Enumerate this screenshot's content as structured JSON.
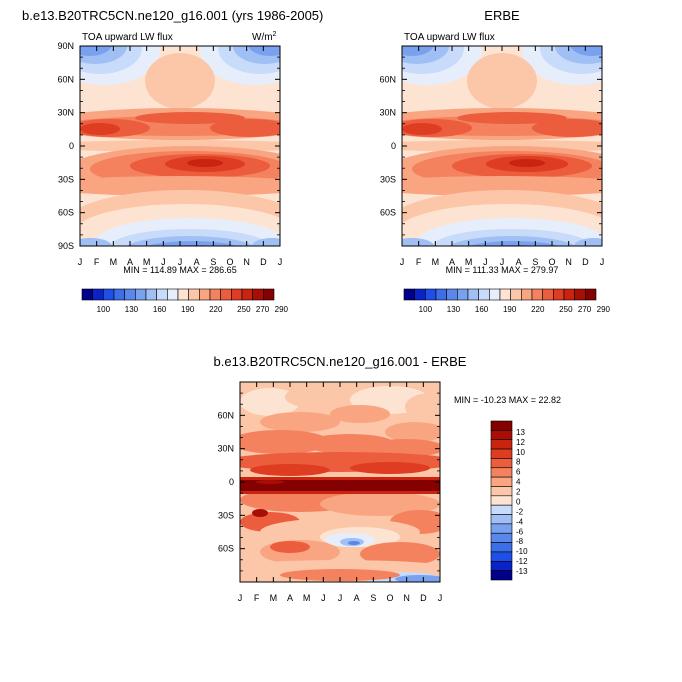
{
  "palette": [
    "#00008b",
    "#0a23c8",
    "#1f4fe6",
    "#3c6ee8",
    "#5a87ea",
    "#7aa1ee",
    "#a0bff4",
    "#c8dbfa",
    "#e6eefc",
    "#fde4d2",
    "#fcc7a8",
    "#f9a582",
    "#f4825e",
    "#ec5d3e",
    "#de3d22",
    "#c9240f",
    "#a80e05",
    "#850000"
  ],
  "panels": [
    {
      "id": "model",
      "title": "b.e13.B20TRC5CN.ne120_g16.001 (yrs 1986-2005)",
      "subtitle_left": "TOA upward LW flux",
      "units_base": "W/m",
      "units_exp": "2",
      "stats": "MIN = 114.89 MAX = 286.65",
      "y_tick_labels": [
        "90N",
        "60N",
        "30N",
        "0",
        "30S",
        "60S",
        "90S"
      ],
      "y_tick_values": [
        90,
        60,
        30,
        0,
        -30,
        -60,
        -90
      ],
      "x_tick_labels": [
        "J",
        "F",
        "M",
        "A",
        "M",
        "J",
        "J",
        "A",
        "S",
        "O",
        "N",
        "D",
        "J"
      ],
      "colorbar_labels": [
        "100",
        "130",
        "160",
        "190",
        "220",
        "250",
        "270",
        "290"
      ]
    },
    {
      "id": "obs",
      "title": "ERBE",
      "subtitle_left": "TOA upward LW flux",
      "stats": "MIN = 111.33 MAX = 279.97",
      "y_tick_labels": [
        "60N",
        "30N",
        "0",
        "30S",
        "60S"
      ],
      "y_tick_values": [
        60,
        30,
        0,
        -30,
        -60
      ],
      "x_tick_labels": [
        "J",
        "F",
        "M",
        "A",
        "M",
        "J",
        "J",
        "A",
        "S",
        "O",
        "N",
        "D",
        "J"
      ],
      "colorbar_labels": [
        "100",
        "130",
        "160",
        "190",
        "220",
        "250",
        "270",
        "290"
      ]
    },
    {
      "id": "diff",
      "title": "b.e13.B20TRC5CN.ne120_g16.001 - ERBE",
      "stats": "MIN = -10.23 MAX =  22.82",
      "y_tick_labels": [
        "60N",
        "30N",
        "0",
        "30S",
        "60S"
      ],
      "y_tick_values": [
        60,
        30,
        0,
        -30,
        -60
      ],
      "x_tick_labels": [
        "J",
        "F",
        "M",
        "A",
        "M",
        "J",
        "J",
        "A",
        "S",
        "O",
        "N",
        "D",
        "J"
      ],
      "colorbar_labels": [
        "13",
        "12",
        "10",
        "8",
        "6",
        "4",
        "2",
        "0",
        "-2",
        "-4",
        "-6",
        "-8",
        "-10",
        "-12",
        "-13"
      ]
    }
  ],
  "chart_data": [
    {
      "type": "heatmap",
      "title": "b.e13.B20TRC5CN.ne120_g16.001 (yrs 1986-2005)",
      "subtitle": "TOA upward LW flux",
      "units": "W/m^2",
      "x": [
        "J",
        "F",
        "M",
        "A",
        "M",
        "J",
        "J",
        "A",
        "S",
        "O",
        "N",
        "D",
        "J"
      ],
      "y": [
        90,
        60,
        30,
        0,
        -30,
        -60,
        -90
      ],
      "ylim": [
        -90,
        90
      ],
      "levels": [
        100,
        110,
        120,
        130,
        140,
        150,
        160,
        170,
        180,
        190,
        200,
        220,
        230,
        240,
        250,
        260,
        270,
        280,
        290
      ],
      "min": 114.89,
      "max": 286.65
    },
    {
      "type": "heatmap",
      "title": "ERBE",
      "subtitle": "TOA upward LW flux",
      "units": "W/m^2",
      "x": [
        "J",
        "F",
        "M",
        "A",
        "M",
        "J",
        "J",
        "A",
        "S",
        "O",
        "N",
        "D",
        "J"
      ],
      "y": [
        60,
        30,
        0,
        -30,
        -60
      ],
      "ylim": [
        -90,
        90
      ],
      "min": 111.33,
      "max": 279.97
    },
    {
      "type": "heatmap",
      "title": "b.e13.B20TRC5CN.ne120_g16.001 - ERBE",
      "x": [
        "J",
        "F",
        "M",
        "A",
        "M",
        "J",
        "J",
        "A",
        "S",
        "O",
        "N",
        "D",
        "J"
      ],
      "y": [
        60,
        30,
        0,
        -30,
        -60
      ],
      "ylim": [
        -90,
        90
      ],
      "levels": [
        -13,
        -12,
        -10,
        -8,
        -6,
        -4,
        -2,
        0,
        2,
        4,
        6,
        8,
        10,
        12,
        13
      ],
      "min": -10.23,
      "max": 22.82
    }
  ]
}
